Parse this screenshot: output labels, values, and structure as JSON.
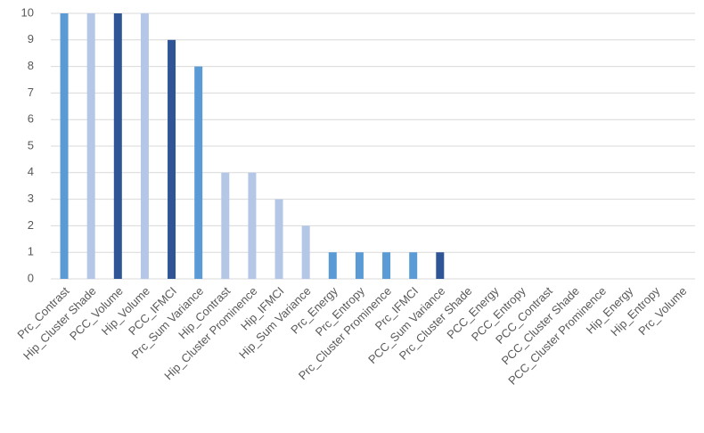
{
  "chart_data": {
    "type": "bar",
    "categories": [
      "Prc_Contrast",
      "Hip_Cluster Shade",
      "PCC_Volume",
      "Hip_Volume",
      "PCC_IFMCI",
      "Prc_Sum Variance",
      "Hip_Contrast",
      "Hip_Cluster Prominence",
      "Hip_IFMCI",
      "Hip_Sum Variance",
      "Prc_Energy",
      "Prc_Entropy",
      "Prc_Cluster Prominence",
      "Prc_IFMCI",
      "PCC_Sum Variance",
      "Prc_Cluster Shade",
      "PCC_Energy",
      "PCC_Entropy",
      "PCC_Contrast",
      "PCC_Cluster Shade",
      "PCC_Cluster Prominence",
      "Hip_Energy",
      "Hip_Entropy",
      "Prc_Volume"
    ],
    "values": [
      10,
      10,
      10,
      10,
      9,
      8,
      4,
      4,
      3,
      2,
      1,
      1,
      1,
      1,
      1,
      0,
      0,
      0,
      0,
      0,
      0,
      0,
      0,
      0
    ],
    "colors": [
      "#5b9bd5",
      "#b4c7e7",
      "#2f5597",
      "#b4c7e7",
      "#2f5597",
      "#5b9bd5",
      "#b4c7e7",
      "#b4c7e7",
      "#b4c7e7",
      "#b4c7e7",
      "#5b9bd5",
      "#5b9bd5",
      "#5b9bd5",
      "#5b9bd5",
      "#2f5597",
      "#5b9bd5",
      "#2f5597",
      "#2f5597",
      "#2f5597",
      "#2f5597",
      "#2f5597",
      "#b4c7e7",
      "#b4c7e7",
      "#5b9bd5"
    ],
    "ylim": [
      0,
      10
    ],
    "yticks": [
      0,
      1,
      2,
      3,
      4,
      5,
      6,
      7,
      8,
      9,
      10
    ],
    "grid": true
  }
}
